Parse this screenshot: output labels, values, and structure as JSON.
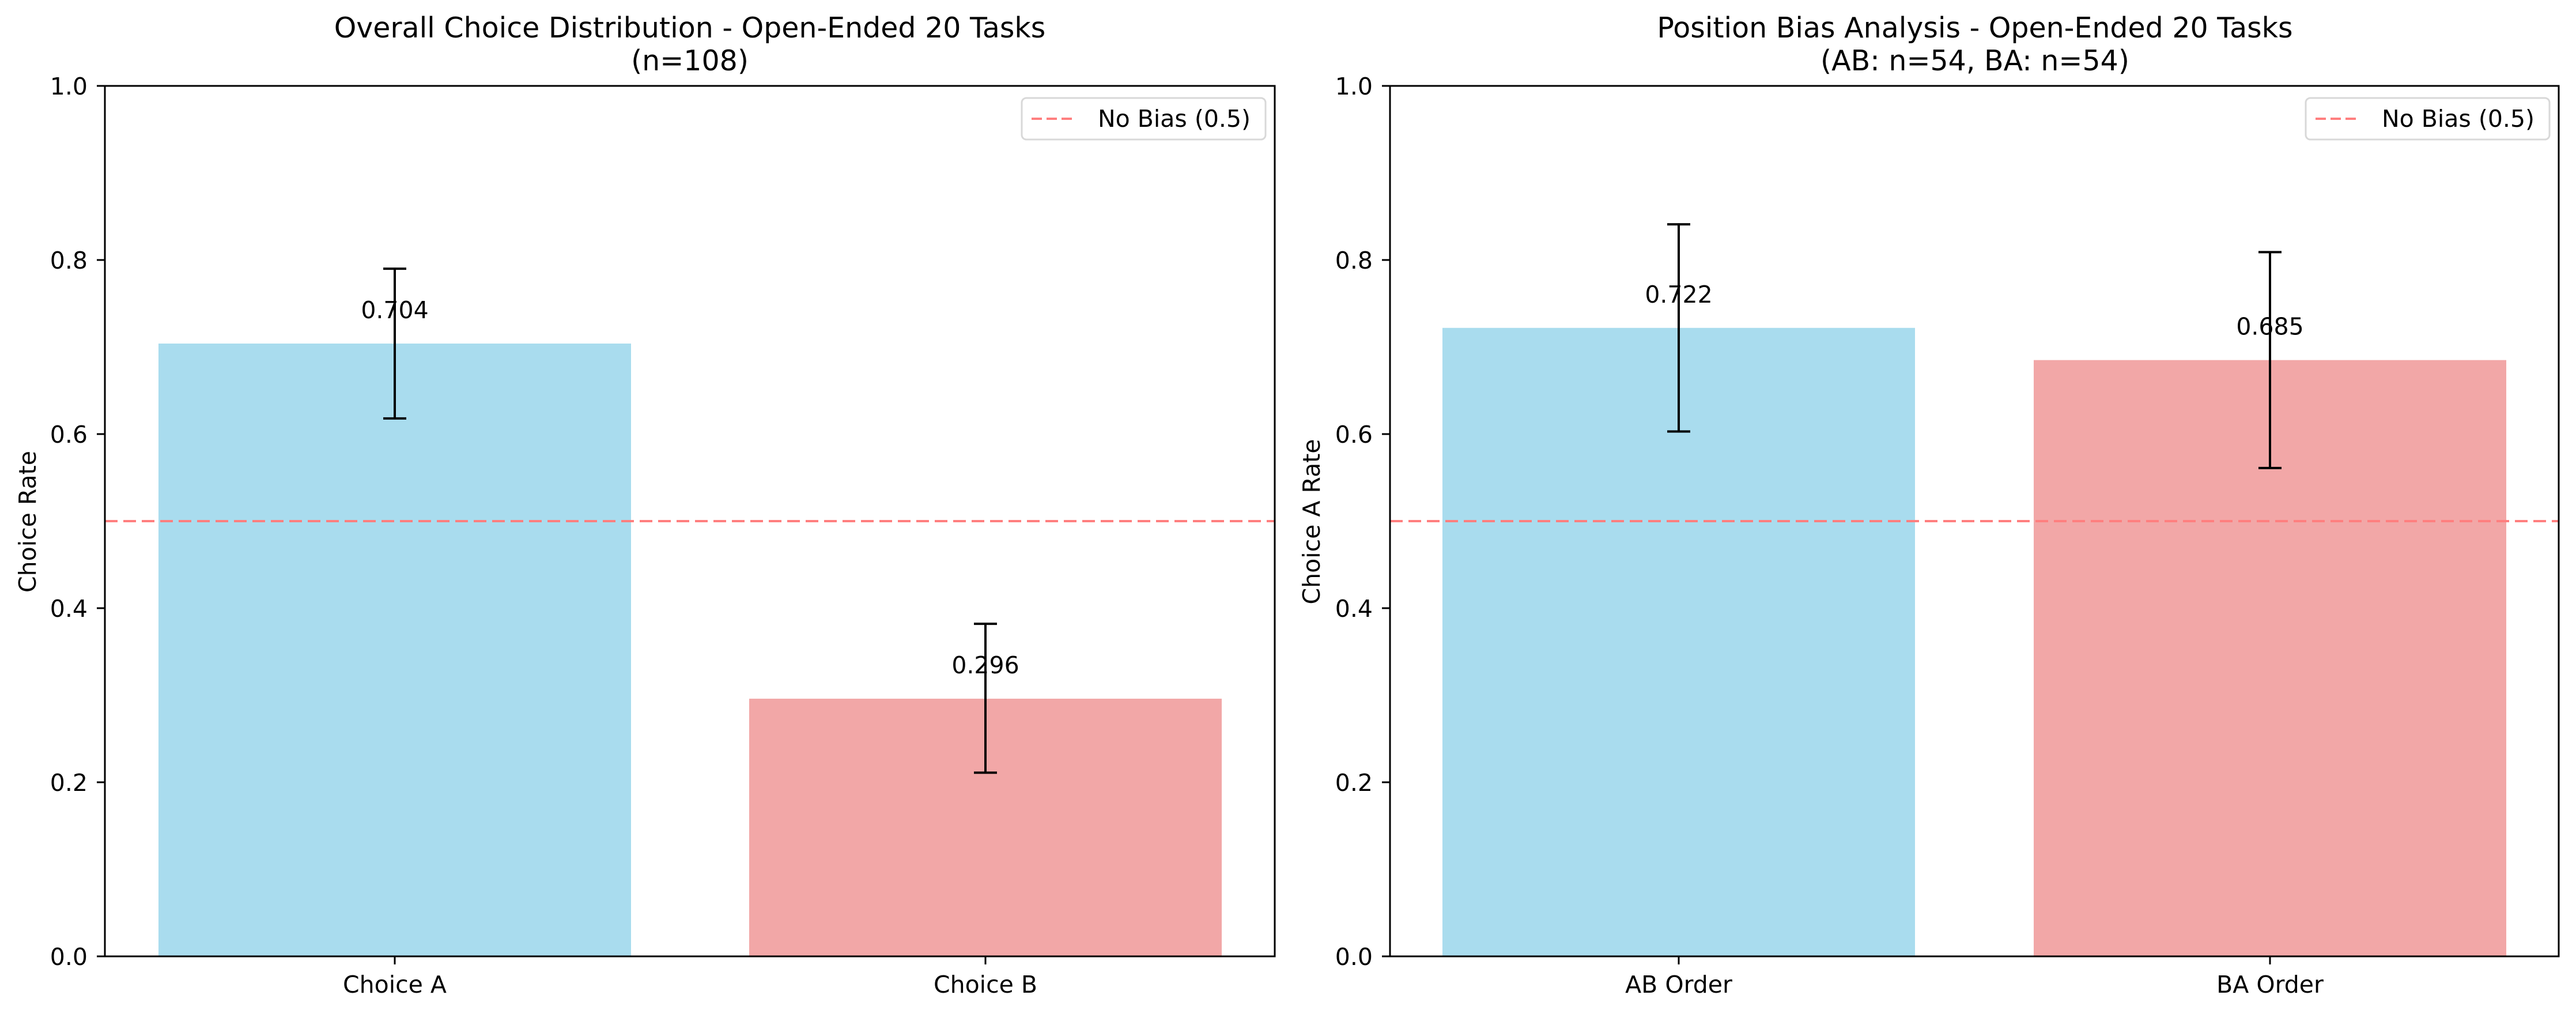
{
  "chart_data": [
    {
      "type": "bar",
      "title": "Overall Choice Distribution - Open-Ended 20 Tasks",
      "subtitle": "(n=108)",
      "xlabel": "",
      "ylabel": "Choice Rate",
      "ylim": [
        0,
        1.0
      ],
      "yticks": [
        "0.0",
        "0.2",
        "0.4",
        "0.6",
        "0.8",
        "1.0"
      ],
      "categories": [
        "Choice A",
        "Choice B"
      ],
      "values": [
        0.704,
        0.296
      ],
      "value_labels": [
        "0.704",
        "0.296"
      ],
      "error_low": [
        0.618,
        0.211
      ],
      "error_high": [
        0.79,
        0.382
      ],
      "bar_colors": [
        "#a9dcee",
        "#f2a7a7"
      ],
      "reference_line": {
        "value": 0.5,
        "label": "No Bias (0.5)",
        "color": "#ff7f7f",
        "style": "dashed"
      },
      "legend_position": "top-right",
      "grid": false
    },
    {
      "type": "bar",
      "title": "Position Bias Analysis - Open-Ended 20 Tasks",
      "subtitle": "(AB: n=54, BA: n=54)",
      "xlabel": "",
      "ylabel": "Choice A Rate",
      "ylim": [
        0,
        1.0
      ],
      "yticks": [
        "0.0",
        "0.2",
        "0.4",
        "0.6",
        "0.8",
        "1.0"
      ],
      "categories": [
        "AB Order",
        "BA Order"
      ],
      "values": [
        0.722,
        0.685
      ],
      "value_labels": [
        "0.722",
        "0.685"
      ],
      "error_low": [
        0.603,
        0.561
      ],
      "error_high": [
        0.841,
        0.809
      ],
      "bar_colors": [
        "#a9dcee",
        "#f2a7a7"
      ],
      "reference_line": {
        "value": 0.5,
        "label": "No Bias (0.5)",
        "color": "#ff7f7f",
        "style": "dashed"
      },
      "legend_position": "top-right",
      "grid": false
    }
  ]
}
